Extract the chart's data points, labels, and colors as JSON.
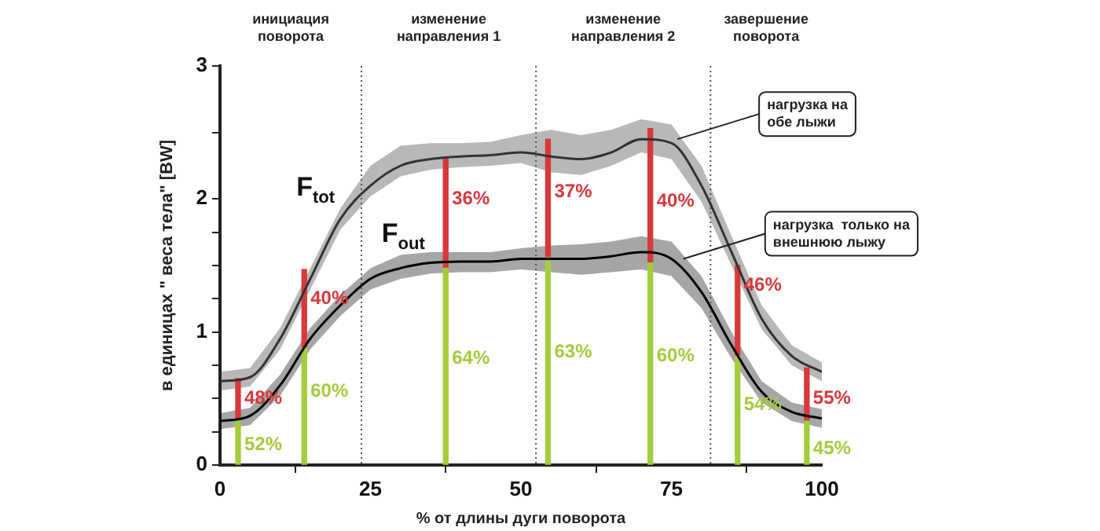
{
  "chart_data": {
    "type": "line",
    "xlabel": "% от длины дуги поворота",
    "ylabel": "в единицах \" веса тела\" [BW]",
    "xlim": [
      0,
      100
    ],
    "xticks": [
      0,
      25,
      50,
      75,
      100
    ],
    "ylim": [
      0,
      3
    ],
    "yticks": [
      0,
      {
        "value": 0.25,
        "label": null
      },
      {
        "value": 0.5,
        "label": null
      },
      {
        "value": 0.75,
        "label": null
      },
      1,
      {
        "value": 1.25,
        "label": null
      },
      {
        "value": 1.5,
        "label": null
      },
      {
        "value": 1.75,
        "label": null
      },
      2,
      {
        "value": 2.5,
        "label": null
      },
      3
    ],
    "grid": false,
    "legend": false,
    "stacked": true,
    "ref_lines": [
      {
        "axis": "x",
        "value": 23.5,
        "label": null,
        "color": "#555555",
        "line_style": "dotted"
      },
      {
        "axis": "x",
        "value": 52.5,
        "label": null,
        "color": "#555555",
        "line_style": "dotted"
      },
      {
        "axis": "x",
        "value": 81.5,
        "label": null,
        "color": "#555555",
        "line_style": "dotted"
      }
    ],
    "annotations": [
      "инициация поворота",
      "изменение направления 1",
      "изменение направления 2",
      "завершение поворота",
      {
        "text": "52%",
        "x": 3,
        "y": 0.15
      },
      {
        "text": "60%",
        "x": 14,
        "y": 0.55
      },
      {
        "text": "64%",
        "x": 37.5,
        "y": 0.8
      },
      {
        "text": "63%",
        "x": 54.5,
        "y": 0.85
      },
      {
        "text": "60%",
        "x": 71.5,
        "y": 0.82
      },
      {
        "text": "54%",
        "x": 86,
        "y": 0.45
      },
      {
        "text": "45%",
        "x": 97.5,
        "y": 0.12
      },
      {
        "text": "48%",
        "x": 3,
        "y": 0.5
      },
      {
        "text": "40%",
        "x": 14,
        "y": 1.25
      },
      {
        "text": "36%",
        "x": 37.5,
        "y": 2.0
      },
      {
        "text": "37%",
        "x": 54.5,
        "y": 2.05
      },
      {
        "text": "40%",
        "x": 71.5,
        "y": 1.98
      },
      {
        "text": "46%",
        "x": 86,
        "y": 1.35
      },
      {
        "text": "55%",
        "x": 97.5,
        "y": 0.5
      },
      {
        "text": "нагрузка на обе лыжи",
        "x": 76,
        "y": 2.45
      },
      {
        "text": "нагрузка  только на внешнюю лыжу",
        "x": 77,
        "y": 1.55
      }
    ],
    "series": [
      {
        "name": "F$_{tot}$",
        "color": "#333333",
        "x": [
          0,
          5,
          10,
          15,
          20,
          25,
          30,
          35,
          40,
          45,
          50,
          55,
          60,
          65,
          70,
          75,
          80,
          85,
          90,
          95,
          100
        ],
        "values": [
          0.63,
          0.66,
          0.95,
          1.4,
          1.85,
          2.1,
          2.25,
          2.3,
          2.32,
          2.33,
          2.35,
          2.32,
          2.3,
          2.35,
          2.45,
          2.42,
          2.1,
          1.6,
          1.1,
          0.82,
          0.7
        ],
        "lower": [
          0.56,
          0.59,
          0.87,
          1.32,
          1.77,
          2.02,
          2.17,
          2.22,
          2.24,
          2.25,
          2.27,
          2.2,
          2.18,
          2.25,
          2.35,
          2.3,
          1.98,
          1.5,
          1.02,
          0.75,
          0.63
        ],
        "upper": [
          0.7,
          0.73,
          1.03,
          1.48,
          1.93,
          2.25,
          2.4,
          2.42,
          2.42,
          2.43,
          2.48,
          2.52,
          2.48,
          2.52,
          2.6,
          2.56,
          2.25,
          1.72,
          1.2,
          0.9,
          0.77
        ]
      },
      {
        "name": "F$_{out}$",
        "color": "#000000",
        "x": [
          0,
          5,
          10,
          15,
          20,
          25,
          30,
          35,
          40,
          45,
          50,
          55,
          60,
          65,
          70,
          75,
          80,
          85,
          90,
          95,
          100
        ],
        "values": [
          0.33,
          0.37,
          0.6,
          0.95,
          1.2,
          1.4,
          1.48,
          1.52,
          1.53,
          1.53,
          1.55,
          1.55,
          1.55,
          1.57,
          1.6,
          1.55,
          1.3,
          0.9,
          0.55,
          0.4,
          0.35
        ],
        "lower": [
          0.27,
          0.3,
          0.52,
          0.87,
          1.12,
          1.32,
          1.4,
          1.44,
          1.45,
          1.45,
          1.47,
          1.45,
          1.43,
          1.45,
          1.47,
          1.42,
          1.18,
          0.8,
          0.47,
          0.33,
          0.28
        ],
        "upper": [
          0.39,
          0.43,
          0.68,
          1.03,
          1.28,
          1.48,
          1.58,
          1.6,
          1.6,
          1.6,
          1.63,
          1.65,
          1.66,
          1.68,
          1.72,
          1.68,
          1.42,
          1.0,
          0.63,
          0.47,
          0.42
        ]
      },
      {
        "type": "bar",
        "color": "#a4cc3c",
        "x": [
          3,
          14,
          37.5,
          54.5,
          71.5,
          86,
          97.5
        ],
        "values": [
          0.34,
          0.88,
          1.48,
          1.56,
          1.52,
          0.82,
          0.33
        ]
      },
      {
        "type": "bar",
        "color": "#d8383c",
        "x": [
          3,
          14,
          37.5,
          54.5,
          71.5,
          86,
          97.5
        ],
        "values": [
          0.31,
          0.59,
          0.83,
          0.89,
          1.01,
          0.68,
          0.4
        ]
      }
    ]
  }
}
